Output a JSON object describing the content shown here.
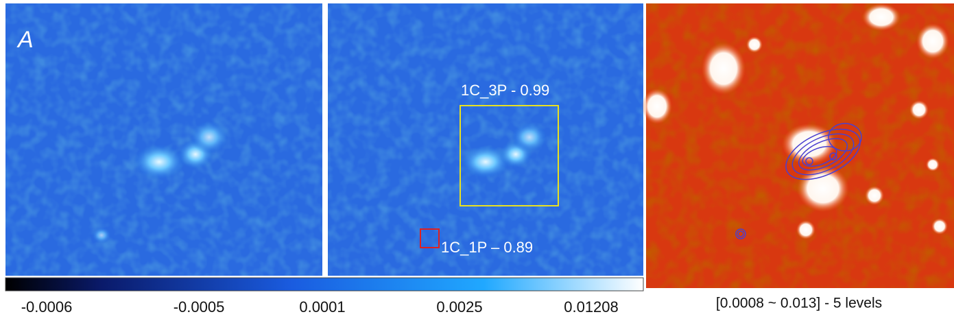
{
  "panel_label": "A",
  "annotations": [
    "1C_3P - 0.99",
    "1C_1P – 0.89"
  ],
  "colorbar": {
    "tick_labels": [
      "-0.0006",
      "-0.0005",
      "0.0001",
      "0.0025",
      "0.01208"
    ]
  },
  "contour_caption": "[0.0008 ~ 0.013] - 5 levels"
}
